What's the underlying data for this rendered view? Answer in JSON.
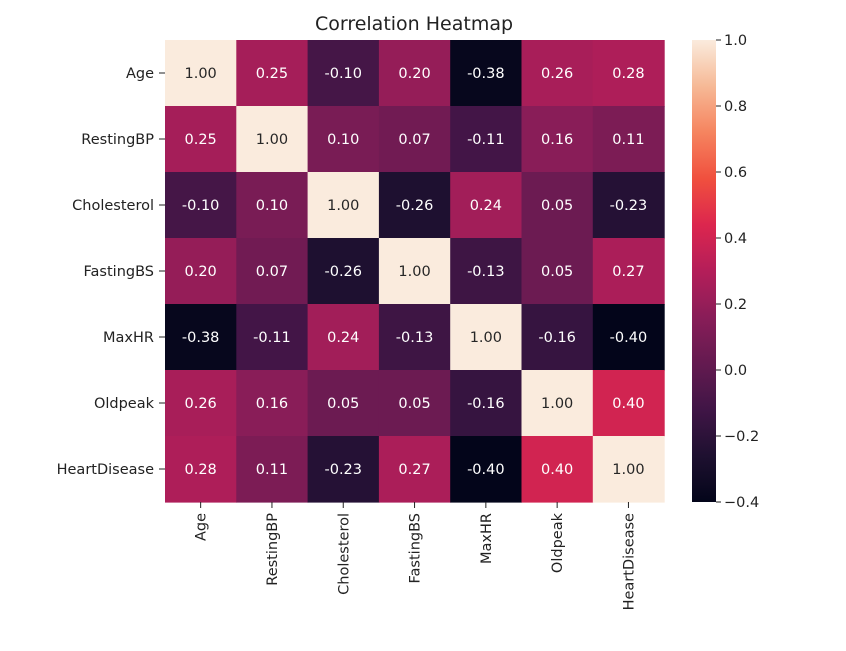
{
  "chart_data": {
    "type": "heatmap",
    "title": "Correlation Heatmap",
    "xlabel": "",
    "ylabel": "",
    "x_categories": [
      "Age",
      "RestingBP",
      "Cholesterol",
      "FastingBS",
      "MaxHR",
      "Oldpeak",
      "HeartDisease"
    ],
    "y_categories": [
      "Age",
      "RestingBP",
      "Cholesterol",
      "FastingBS",
      "MaxHR",
      "Oldpeak",
      "HeartDisease"
    ],
    "values": [
      [
        1.0,
        0.25,
        -0.1,
        0.2,
        -0.38,
        0.26,
        0.28
      ],
      [
        0.25,
        1.0,
        0.1,
        0.07,
        -0.11,
        0.16,
        0.11
      ],
      [
        -0.1,
        0.1,
        1.0,
        -0.26,
        0.24,
        0.05,
        -0.23
      ],
      [
        0.2,
        0.07,
        -0.26,
        1.0,
        -0.13,
        0.05,
        0.27
      ],
      [
        -0.38,
        -0.11,
        0.24,
        -0.13,
        1.0,
        -0.16,
        -0.4
      ],
      [
        0.26,
        0.16,
        0.05,
        0.05,
        -0.16,
        1.0,
        0.4
      ],
      [
        0.28,
        0.11,
        -0.23,
        0.27,
        -0.4,
        0.4,
        1.0
      ]
    ],
    "annotation_format": "0.00",
    "colormap": "rocket",
    "colorbar": {
      "range": [
        -0.4,
        1.0
      ],
      "ticks": [
        -0.4,
        -0.2,
        0.0,
        0.2,
        0.4,
        0.6,
        0.8,
        1.0
      ],
      "tick_labels": [
        "−0.4",
        "−0.2",
        "0.0",
        "0.2",
        "0.4",
        "0.6",
        "0.8",
        "1.0"
      ]
    },
    "grid": false
  }
}
